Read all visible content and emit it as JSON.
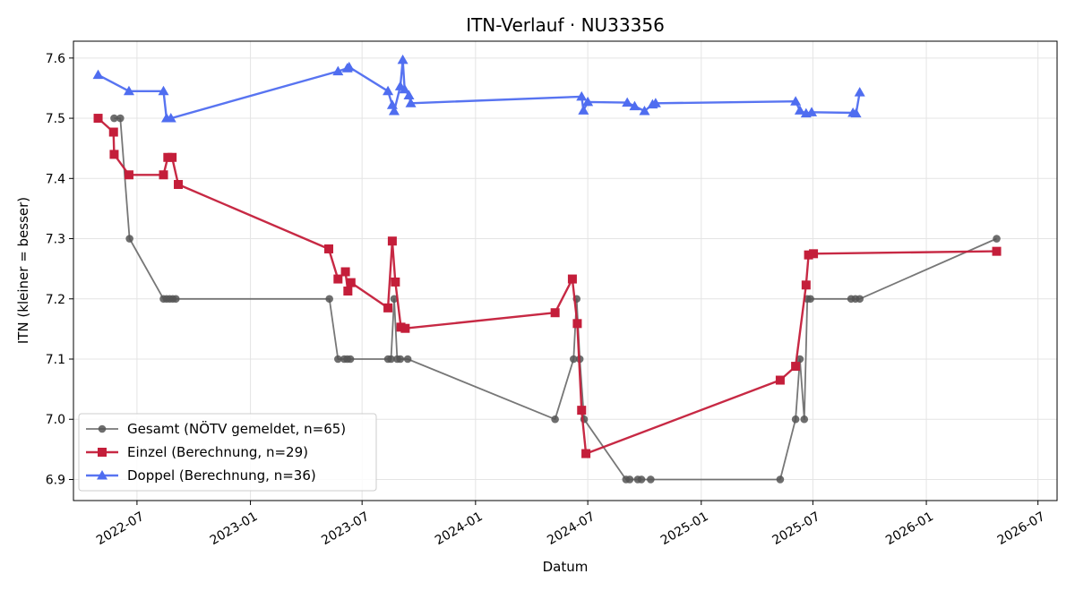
{
  "chart_data": {
    "type": "line",
    "title": "ITN-Verlauf · NU33356",
    "xlabel": "Datum",
    "ylabel": "ITN  (kleiner = besser)",
    "xlim": [
      "2022-03-20",
      "2026-08-01"
    ],
    "ylim": [
      6.865,
      7.628
    ],
    "x_ticks": [
      "2022-07-01",
      "2023-01-01",
      "2023-07-01",
      "2024-01-01",
      "2024-07-01",
      "2025-01-01",
      "2025-07-01",
      "2026-01-01",
      "2026-07-01"
    ],
    "x_tick_labels": [
      "2022-07",
      "2023-01",
      "2023-07",
      "2024-01",
      "2024-07",
      "2025-01",
      "2025-07",
      "2026-01",
      "2026-07"
    ],
    "y_ticks": [
      6.9,
      7.0,
      7.1,
      7.2,
      7.3,
      7.4,
      7.5,
      7.6
    ],
    "y_tick_labels": [
      "6.9",
      "7.0",
      "7.1",
      "7.2",
      "7.3",
      "7.4",
      "7.5",
      "7.6"
    ],
    "grid": true,
    "legend_position": "lower-left",
    "series": [
      {
        "name": "Gesamt (NÖTV gemeldet, n=65)",
        "color": "#555555",
        "marker": "circle",
        "points": [
          [
            "2022-05-25",
            7.5
          ],
          [
            "2022-06-04",
            7.5
          ],
          [
            "2022-06-19",
            7.3
          ],
          [
            "2022-08-13",
            7.2
          ],
          [
            "2022-08-18",
            7.2
          ],
          [
            "2022-08-23",
            7.2
          ],
          [
            "2022-08-28",
            7.2
          ],
          [
            "2022-09-02",
            7.2
          ],
          [
            "2023-05-09",
            7.2
          ],
          [
            "2023-05-23",
            7.1
          ],
          [
            "2023-06-02",
            7.1
          ],
          [
            "2023-06-07",
            7.1
          ],
          [
            "2023-06-12",
            7.1
          ],
          [
            "2023-08-12",
            7.1
          ],
          [
            "2023-08-17",
            7.1
          ],
          [
            "2023-08-22",
            7.2
          ],
          [
            "2023-08-27",
            7.1
          ],
          [
            "2023-09-01",
            7.1
          ],
          [
            "2023-09-13",
            7.1
          ],
          [
            "2024-05-09",
            7.0
          ],
          [
            "2024-06-08",
            7.1
          ],
          [
            "2024-06-13",
            7.2
          ],
          [
            "2024-06-18",
            7.1
          ],
          [
            "2024-06-25",
            7.0
          ],
          [
            "2024-09-01",
            6.9
          ],
          [
            "2024-09-07",
            6.9
          ],
          [
            "2024-09-20",
            6.9
          ],
          [
            "2024-09-26",
            6.9
          ],
          [
            "2024-10-11",
            6.9
          ],
          [
            "2025-05-09",
            6.9
          ],
          [
            "2025-06-03",
            7.0
          ],
          [
            "2025-06-10",
            7.1
          ],
          [
            "2025-06-17",
            7.0
          ],
          [
            "2025-06-22",
            7.2
          ],
          [
            "2025-06-27",
            7.2
          ],
          [
            "2025-09-01",
            7.2
          ],
          [
            "2025-09-08",
            7.2
          ],
          [
            "2025-09-15",
            7.2
          ],
          [
            "2026-04-25",
            7.3
          ]
        ]
      },
      {
        "name": "Einzel (Berechnung, n=29)",
        "color": "#c41e3a",
        "marker": "square",
        "points": [
          [
            "2022-04-29",
            7.5
          ],
          [
            "2022-05-24",
            7.477
          ],
          [
            "2022-05-25",
            7.44
          ],
          [
            "2022-06-18",
            7.406
          ],
          [
            "2022-08-13",
            7.406
          ],
          [
            "2022-08-20",
            7.435
          ],
          [
            "2022-08-27",
            7.435
          ],
          [
            "2022-09-06",
            7.39
          ],
          [
            "2023-05-08",
            7.283
          ],
          [
            "2023-05-23",
            7.233
          ],
          [
            "2023-06-04",
            7.245
          ],
          [
            "2023-06-08",
            7.213
          ],
          [
            "2023-06-13",
            7.227
          ],
          [
            "2023-08-12",
            7.185
          ],
          [
            "2023-08-19",
            7.296
          ],
          [
            "2023-08-24",
            7.228
          ],
          [
            "2023-09-02",
            7.153
          ],
          [
            "2023-09-09",
            7.151
          ],
          [
            "2024-05-09",
            7.177
          ],
          [
            "2024-06-06",
            7.233
          ],
          [
            "2024-06-14",
            7.159
          ],
          [
            "2024-06-21",
            7.015
          ],
          [
            "2024-06-28",
            6.943
          ],
          [
            "2025-05-09",
            7.065
          ],
          [
            "2025-06-03",
            7.088
          ],
          [
            "2025-06-20",
            7.223
          ],
          [
            "2025-06-24",
            7.273
          ],
          [
            "2025-07-02",
            7.275
          ],
          [
            "2026-04-25",
            7.279
          ]
        ]
      },
      {
        "name": "Doppel (Berechnung, n=36)",
        "color": "#4f6df0",
        "marker": "triangle",
        "points": [
          [
            "2022-04-29",
            7.572
          ],
          [
            "2022-06-18",
            7.545
          ],
          [
            "2022-08-13",
            7.545
          ],
          [
            "2022-08-18",
            7.5
          ],
          [
            "2022-08-25",
            7.5
          ],
          [
            "2023-05-23",
            7.578
          ],
          [
            "2023-06-07",
            7.583
          ],
          [
            "2023-06-10",
            7.585
          ],
          [
            "2023-08-12",
            7.545
          ],
          [
            "2023-08-19",
            7.522
          ],
          [
            "2023-08-22",
            7.512
          ],
          [
            "2023-09-01",
            7.553
          ],
          [
            "2023-09-05",
            7.597
          ],
          [
            "2023-09-08",
            7.548
          ],
          [
            "2023-09-15",
            7.538
          ],
          [
            "2023-09-18",
            7.525
          ],
          [
            "2024-06-21",
            7.536
          ],
          [
            "2024-06-24",
            7.513
          ],
          [
            "2024-07-01",
            7.527
          ],
          [
            "2024-09-03",
            7.526
          ],
          [
            "2024-09-15",
            7.52
          ],
          [
            "2024-10-01",
            7.512
          ],
          [
            "2024-10-14",
            7.523
          ],
          [
            "2024-10-19",
            7.525
          ],
          [
            "2025-06-03",
            7.528
          ],
          [
            "2025-06-10",
            7.513
          ],
          [
            "2025-06-20",
            7.508
          ],
          [
            "2025-06-29",
            7.51
          ],
          [
            "2025-09-04",
            7.509
          ],
          [
            "2025-09-09",
            7.508
          ],
          [
            "2025-09-15",
            7.543
          ]
        ]
      }
    ]
  }
}
